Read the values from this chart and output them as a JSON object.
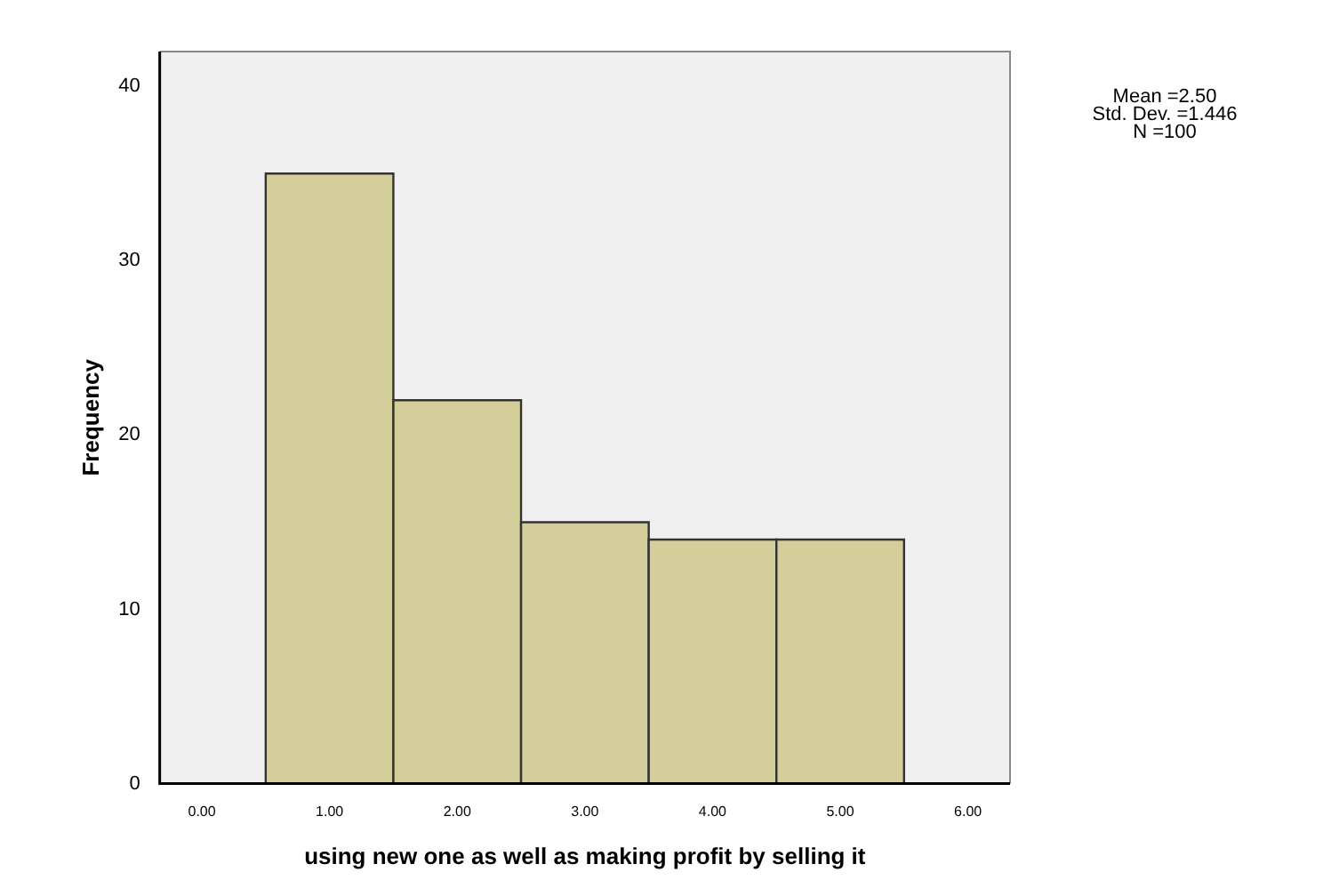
{
  "chart_data": {
    "type": "histogram",
    "xlabel": "using new one as well as making profit by selling it",
    "ylabel": "Frequency",
    "bins": [
      0.5,
      1.5,
      2.5,
      3.5,
      4.5,
      5.5
    ],
    "values": [
      35,
      22,
      15,
      14,
      14
    ],
    "color": "#d3ce9a",
    "xlim": [
      -0.33,
      6.33
    ],
    "xticks": [
      {
        "value": 0,
        "label": "0.00"
      },
      {
        "value": 1,
        "label": "1.00"
      },
      {
        "value": 2,
        "label": "2.00"
      },
      {
        "value": 3,
        "label": "3.00"
      },
      {
        "value": 4,
        "label": "4.00"
      },
      {
        "value": 5,
        "label": "5.00"
      },
      {
        "value": 6,
        "label": "6.00"
      }
    ],
    "ylim": [
      0,
      42
    ],
    "yticks": [
      0,
      10,
      20,
      30,
      40
    ],
    "grid": false,
    "legend": false,
    "annotations": [
      "Mean =2.50",
      "Std. Dev. =1.446",
      "N =100"
    ]
  }
}
